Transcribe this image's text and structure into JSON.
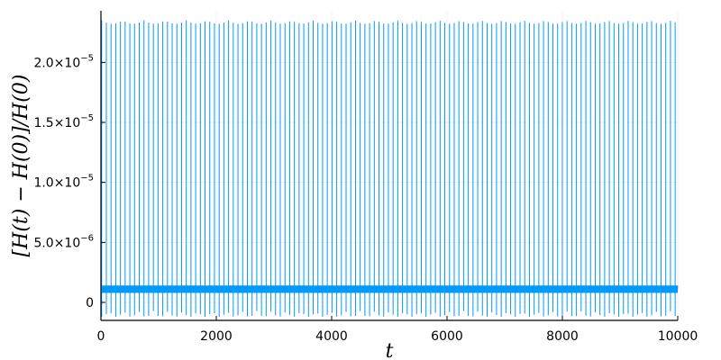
{
  "chart_data": {
    "type": "line",
    "title": "",
    "xlabel": "t",
    "ylabel": "[H(t) − H(0)]/H(0)",
    "xlim": [
      0,
      10000
    ],
    "ylim": [
      -1.5e-06,
      2.43e-05
    ],
    "grid": true,
    "legend": "none",
    "colors": {
      "series": "#009AFA",
      "axis": "#000000",
      "grid": "#e6e6e6"
    },
    "x_ticks": [
      {
        "value": 0,
        "label": "0"
      },
      {
        "value": 2000,
        "label": "2000"
      },
      {
        "value": 4000,
        "label": "4000"
      },
      {
        "value": 6000,
        "label": "6000"
      },
      {
        "value": 8000,
        "label": "8000"
      },
      {
        "value": 10000,
        "label": "10000"
      }
    ],
    "y_ticks": [
      {
        "value": 0,
        "mantissa": "0",
        "exponent": ""
      },
      {
        "value": 5e-06,
        "mantissa": "5.0×10",
        "exponent": "−6"
      },
      {
        "value": 1e-05,
        "mantissa": "1.0×10",
        "exponent": "−5"
      },
      {
        "value": 1.5e-05,
        "mantissa": "1.5×10",
        "exponent": "−5"
      },
      {
        "value": 2e-05,
        "mantissa": "2.0×10",
        "exponent": "−5"
      }
    ],
    "series": [
      {
        "spike_period": 81.5,
        "spike_max": 2.35e-05,
        "spike_min": -1.2e-06,
        "baseline_center": 1.1e-06,
        "baseline_band": [
          8e-07,
          1.4e-06
        ]
      }
    ]
  }
}
